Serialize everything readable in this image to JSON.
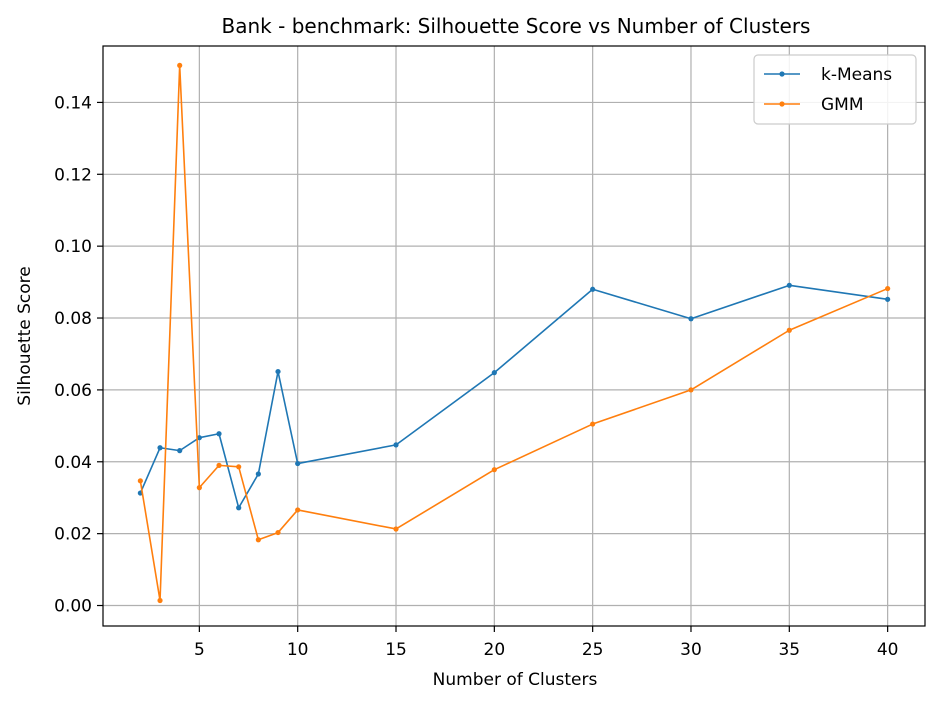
{
  "chart_data": {
    "type": "line",
    "title": "Bank - benchmark: Silhouette Score vs Number of Clusters",
    "xlabel": "Number of Clusters",
    "ylabel": "Silhouette Score",
    "xlim": [
      0.1,
      41.9
    ],
    "ylim": [
      -0.0057,
      0.1557
    ],
    "xticks": [
      5,
      10,
      15,
      20,
      25,
      30,
      35,
      40
    ],
    "xtick_labels": [
      "5",
      "10",
      "15",
      "20",
      "25",
      "30",
      "35",
      "40"
    ],
    "yticks": [
      0,
      0.02,
      0.04,
      0.06,
      0.08,
      0.1,
      0.12,
      0.14
    ],
    "ytick_labels": [
      "0.00",
      "0.02",
      "0.04",
      "0.06",
      "0.08",
      "0.10",
      "0.12",
      "0.14"
    ],
    "grid": true,
    "legend_position": "top-right",
    "x": [
      2,
      3,
      4,
      5,
      6,
      7,
      8,
      9,
      10,
      15,
      20,
      25,
      30,
      35,
      40
    ],
    "series": [
      {
        "name": "k-Means",
        "color": "#1f77b4",
        "values": [
          0.0313,
          0.0439,
          0.0431,
          0.0467,
          0.0478,
          0.0272,
          0.0366,
          0.0651,
          0.0395,
          0.0447,
          0.0648,
          0.088,
          0.0798,
          0.0891,
          0.0852
        ]
      },
      {
        "name": "GMM",
        "color": "#ff7f0e",
        "values": [
          0.0347,
          0.0014,
          0.1503,
          0.0328,
          0.039,
          0.0386,
          0.0183,
          0.0203,
          0.0266,
          0.0213,
          0.0378,
          0.0505,
          0.06,
          0.0766,
          0.0882
        ]
      }
    ]
  }
}
